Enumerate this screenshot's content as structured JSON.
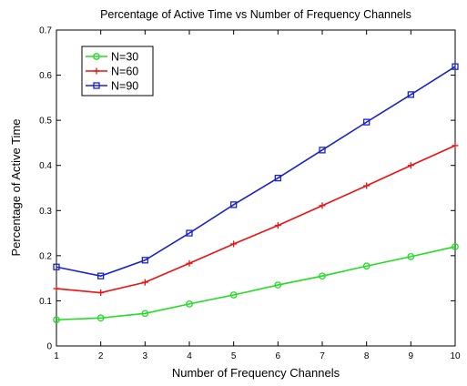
{
  "chart_data": {
    "type": "line",
    "title": "Percentage of Active Time vs Number of Frequency Channels",
    "xlabel": "Number of Frequency Channels",
    "ylabel": "Percentage of Active Time",
    "x": [
      1,
      2,
      3,
      4,
      5,
      6,
      7,
      8,
      9,
      10
    ],
    "xlim": [
      1,
      10
    ],
    "ylim": [
      0,
      0.7
    ],
    "xticks": [
      "1",
      "2",
      "3",
      "4",
      "5",
      "6",
      "7",
      "8",
      "9",
      "10"
    ],
    "yticks": [
      "0",
      "0.1",
      "0.2",
      "0.3",
      "0.4",
      "0.5",
      "0.6",
      "0.7"
    ],
    "grid": true,
    "legend_position": "top-left",
    "series": [
      {
        "name": "N=30",
        "color": "#22dd22",
        "marker": "circle",
        "values": [
          0.058,
          0.062,
          0.072,
          0.093,
          0.113,
          0.135,
          0.155,
          0.177,
          0.198,
          0.22
        ]
      },
      {
        "name": "N=60",
        "color": "#ee1111",
        "marker": "plus",
        "values": [
          0.127,
          0.118,
          0.141,
          0.183,
          0.226,
          0.267,
          0.311,
          0.355,
          0.4,
          0.444
        ]
      },
      {
        "name": "N=90",
        "color": "#1a22cc",
        "marker": "square",
        "values": [
          0.175,
          0.155,
          0.19,
          0.25,
          0.313,
          0.372,
          0.434,
          0.496,
          0.557,
          0.619
        ]
      }
    ]
  }
}
